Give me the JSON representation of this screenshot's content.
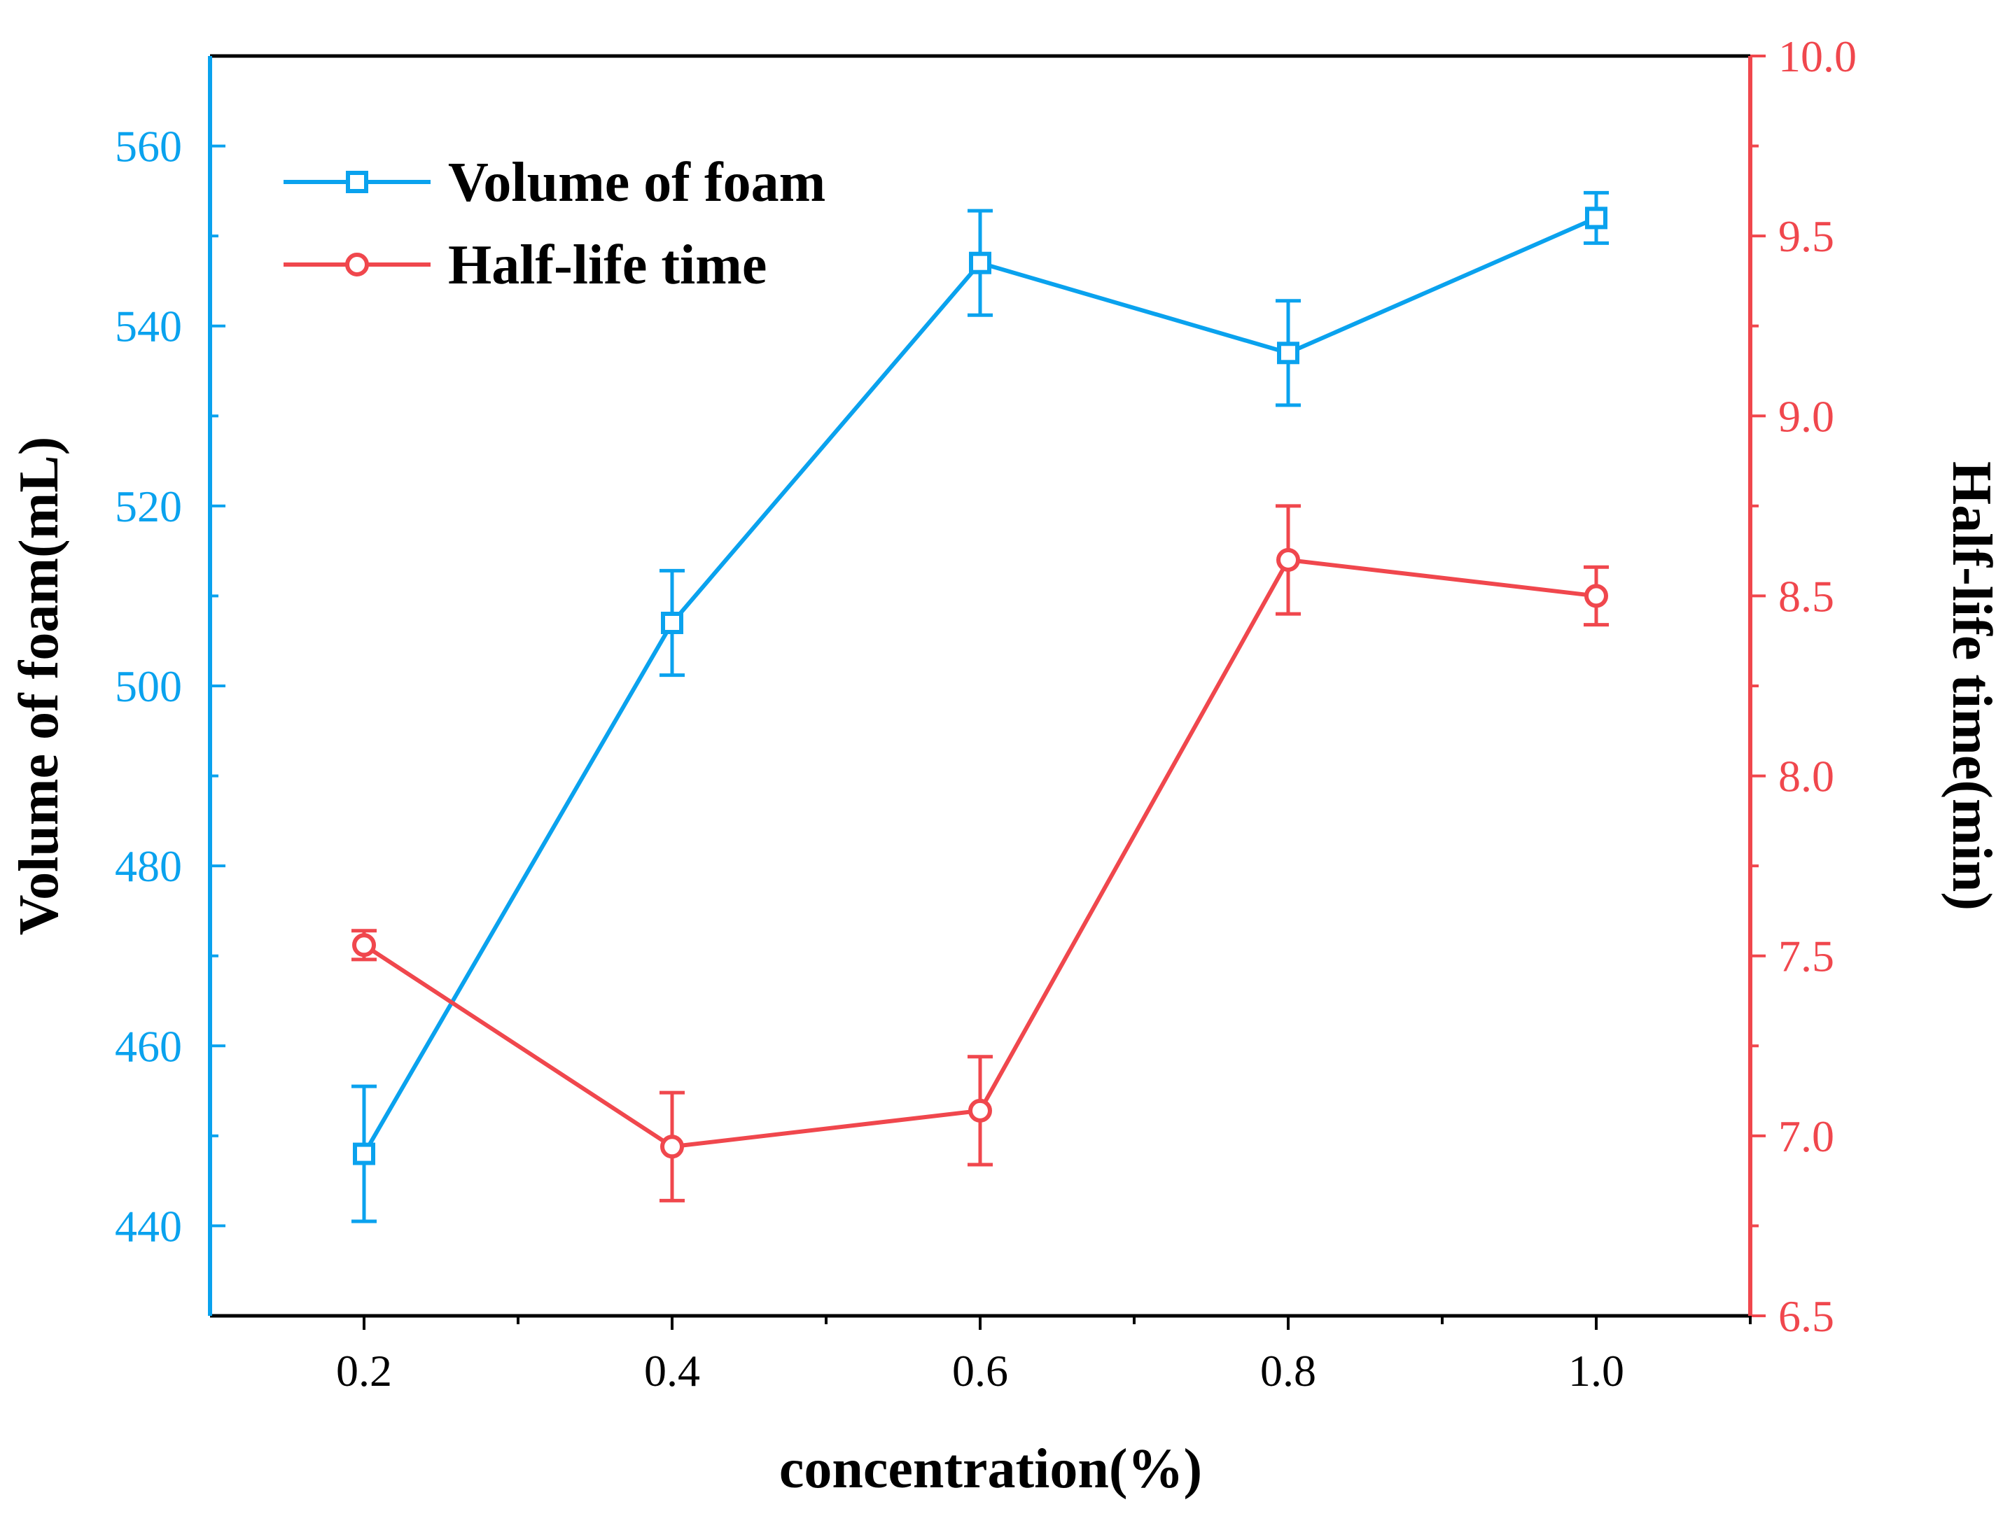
{
  "chart_data": {
    "type": "line",
    "xlabel": "concentration(%)",
    "ylabel_left": "Volume of foam(mL)",
    "ylabel_right": "Half-life time(min)",
    "x": [
      0.2,
      0.4,
      0.6,
      0.8,
      1.0
    ],
    "x_tick_labels": [
      "0.2",
      "0.4",
      "0.6",
      "0.8",
      "1.0"
    ],
    "xlim": [
      0.1,
      1.1
    ],
    "ylim_left": [
      430,
      570
    ],
    "ylim_right": [
      6.5,
      10.0
    ],
    "left_tick_labels": [
      "440",
      "460",
      "480",
      "500",
      "520",
      "540",
      "560"
    ],
    "right_tick_labels": [
      "6.5",
      "7.0",
      "7.5",
      "8.0",
      "8.5",
      "9.0",
      "9.5",
      "10.0"
    ],
    "legend_position": "top-left",
    "series": [
      {
        "name": "Volume of foam",
        "axis": "left",
        "color": "#0aa2ee",
        "marker": "square",
        "values": [
          448,
          507,
          547,
          537,
          552
        ],
        "error": [
          7.5,
          5.8,
          5.8,
          5.8,
          2.8
        ]
      },
      {
        "name": "Half-life time",
        "axis": "right",
        "color": "#f0474d",
        "marker": "circle",
        "values": [
          7.53,
          6.97,
          7.07,
          8.6,
          8.5
        ],
        "error": [
          0.04,
          0.15,
          0.15,
          0.15,
          0.08
        ]
      }
    ]
  }
}
